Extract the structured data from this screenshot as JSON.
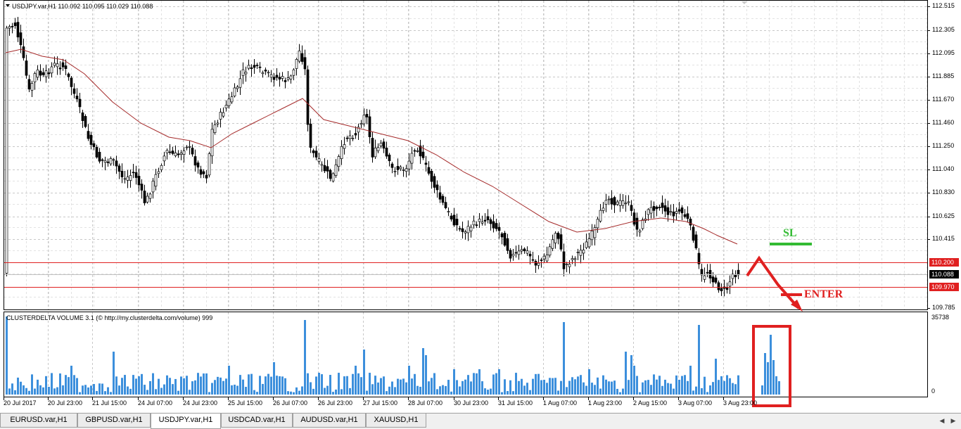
{
  "main_chart": {
    "title": "USDJPY.var,H1  110.092 110.095 110.029 110.088",
    "price_labels": [
      "112.515",
      "112.305",
      "112.095",
      "111.885",
      "111.670",
      "111.460",
      "111.250",
      "111.040",
      "110.830",
      "110.625",
      "110.415",
      "109.785"
    ],
    "hline_labels": {
      "upper": "110.200",
      "current": "110.088",
      "lower": "109.970"
    },
    "annotations": {
      "sl": "SL",
      "enter": "ENTER"
    },
    "colors": {
      "bull": "#000000",
      "bear": "#000000",
      "ma": "#a52a2a",
      "hline": "#e02020",
      "sl": "#33bb33",
      "enter": "#e02020",
      "grid": "#c0c0c0"
    }
  },
  "indicator": {
    "title": "CLUSTERDELTA VOLUME 3.1 (© http://my.clusterdelta.com/volume) 999",
    "scale_labels": {
      "max": "35738",
      "zero": "0"
    },
    "bar_color": "#3c8fdc"
  },
  "time_labels": [
    "20 Jul 2017",
    "20 Jul 23:00",
    "21 Jul 15:00",
    "24 Jul 07:00",
    "24 Jul 23:00",
    "25 Jul 15:00",
    "26 Jul 07:00",
    "26 Jul 23:00",
    "27 Jul 15:00",
    "28 Jul 07:00",
    "30 Jul 23:00",
    "31 Jul 15:00",
    "1 Aug 07:00",
    "1 Aug 23:00",
    "2 Aug 15:00",
    "3 Aug 07:00",
    "3 Aug 23:00"
  ],
  "tabs": [
    {
      "label": "EURUSD.var,H1",
      "active": false
    },
    {
      "label": "GBPUSD.var,H1",
      "active": false
    },
    {
      "label": "USDJPY.var,H1",
      "active": true
    },
    {
      "label": "USDCAD.var,H1",
      "active": false
    },
    {
      "label": "AUDUSD.var,H1",
      "active": false
    },
    {
      "label": "XAUUSD,H1",
      "active": false
    }
  ]
}
